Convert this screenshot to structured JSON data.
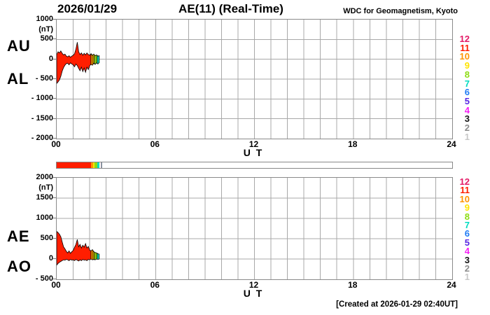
{
  "header": {
    "date": "2026/01/29",
    "title": "AE(11) (Real-Time)",
    "source": "WDC for Geomagnetism, Kyoto"
  },
  "footer": {
    "created_at": "[Created at 2026-01-29 02:40UT]"
  },
  "axis": {
    "x_ticks": [
      "00",
      "06",
      "12",
      "18",
      "24"
    ],
    "x_label": "U T",
    "unit": "(nT)"
  },
  "legend": {
    "meaning": "number-of-stations",
    "entries": [
      {
        "label": "12",
        "color": "#e41a66"
      },
      {
        "label": "11",
        "color": "#ff1e00"
      },
      {
        "label": "10",
        "color": "#ff9400"
      },
      {
        "label": "9",
        "color": "#ffe400"
      },
      {
        "label": "8",
        "color": "#8ddc14"
      },
      {
        "label": "7",
        "color": "#00dcc0"
      },
      {
        "label": "6",
        "color": "#1f7cf5"
      },
      {
        "label": "5",
        "color": "#5726e3"
      },
      {
        "label": "4",
        "color": "#f51ef5"
      },
      {
        "label": "3",
        "color": "#141414"
      },
      {
        "label": "2",
        "color": "#8c8c8c"
      },
      {
        "label": "1",
        "color": "#c8c8c8"
      }
    ]
  },
  "chart_data": [
    {
      "type": "area",
      "name": "AU-AL-panel",
      "xlim": [
        0,
        24
      ],
      "x_tick_step_hours": 6,
      "grid_step_hours": 1,
      "ylim": [
        -2000,
        1000
      ],
      "y_tick_step": 500,
      "y_ticks": [
        "1000",
        "500",
        "0",
        "- 500",
        "- 1000",
        "- 1500",
        "- 2000"
      ],
      "x_sample_step_hours": 0.083333,
      "series": [
        {
          "name": "AU",
          "values": [
            120,
            190,
            160,
            210,
            150,
            110,
            130,
            80,
            60,
            90,
            50,
            80,
            100,
            140,
            260,
            430,
            190,
            120,
            160,
            100,
            150,
            110,
            160,
            120,
            100,
            140,
            100,
            130,
            90,
            110,
            80,
            90,
            60
          ]
        },
        {
          "name": "AL",
          "values": [
            -610,
            -570,
            -520,
            -430,
            -300,
            -210,
            -150,
            -110,
            -100,
            -140,
            -90,
            -120,
            -140,
            -190,
            -120,
            -160,
            -230,
            -290,
            -200,
            -310,
            -220,
            -330,
            -200,
            -260,
            -160,
            -130,
            -150,
            -100,
            -130,
            -90,
            -120,
            -80,
            -60
          ]
        }
      ],
      "station_segments": [
        {
          "stations": 11,
          "from": 0,
          "to": 2.08
        },
        {
          "stations": 10,
          "from": 2.08,
          "to": 2.21
        },
        {
          "stations": 9,
          "from": 2.21,
          "to": 2.3
        },
        {
          "stations": 8,
          "from": 2.3,
          "to": 2.45
        },
        {
          "stations": 7,
          "from": 2.45,
          "to": 2.58
        }
      ]
    },
    {
      "type": "area",
      "name": "AE-AO-panel",
      "xlim": [
        0,
        24
      ],
      "x_tick_step_hours": 6,
      "grid_step_hours": 1,
      "ylim": [
        -500,
        2000
      ],
      "y_tick_step": 500,
      "y_ticks": [
        "2000",
        "1500",
        "1000",
        "500",
        "0",
        "- 500"
      ],
      "x_sample_step_hours": 0.083333,
      "series": [
        {
          "name": "AE",
          "values": [
            680,
            650,
            610,
            550,
            420,
            300,
            250,
            190,
            150,
            200,
            140,
            180,
            210,
            290,
            360,
            480,
            300,
            360,
            270,
            340,
            290,
            380,
            270,
            310,
            220,
            200,
            230,
            180,
            160,
            150,
            130,
            120,
            100
          ]
        },
        {
          "name": "AO",
          "values": [
            -150,
            -110,
            -80,
            -60,
            -40,
            -20,
            -30,
            -10,
            -20,
            -40,
            -10,
            -30,
            -20,
            -40,
            -10,
            -30,
            -50,
            -20,
            -40,
            -10,
            -30,
            -20,
            -40,
            -10,
            -20,
            0,
            -20,
            -10,
            -20,
            0,
            -10,
            0,
            -10
          ]
        }
      ],
      "station_segments": [
        {
          "stations": 11,
          "from": 0,
          "to": 2.08
        },
        {
          "stations": 10,
          "from": 2.08,
          "to": 2.21
        },
        {
          "stations": 9,
          "from": 2.21,
          "to": 2.3
        },
        {
          "stations": 8,
          "from": 2.3,
          "to": 2.45
        },
        {
          "stations": 7,
          "from": 2.45,
          "to": 2.58
        }
      ]
    },
    {
      "type": "bar",
      "name": "station-count-availability-bar",
      "xlim": [
        0,
        24
      ],
      "segments": [
        {
          "stations": 11,
          "from": 0,
          "to": 2.08
        },
        {
          "stations": 10,
          "from": 2.08,
          "to": 2.21
        },
        {
          "stations": 9,
          "from": 2.21,
          "to": 2.3
        },
        {
          "stations": 8,
          "from": 2.3,
          "to": 2.45
        },
        {
          "stations": 7,
          "from": 2.45,
          "to": 2.58
        }
      ],
      "current_time_marker_hours": 2.66,
      "marker_color": "#8a93a0",
      "empty_color": "#ffffff"
    }
  ]
}
